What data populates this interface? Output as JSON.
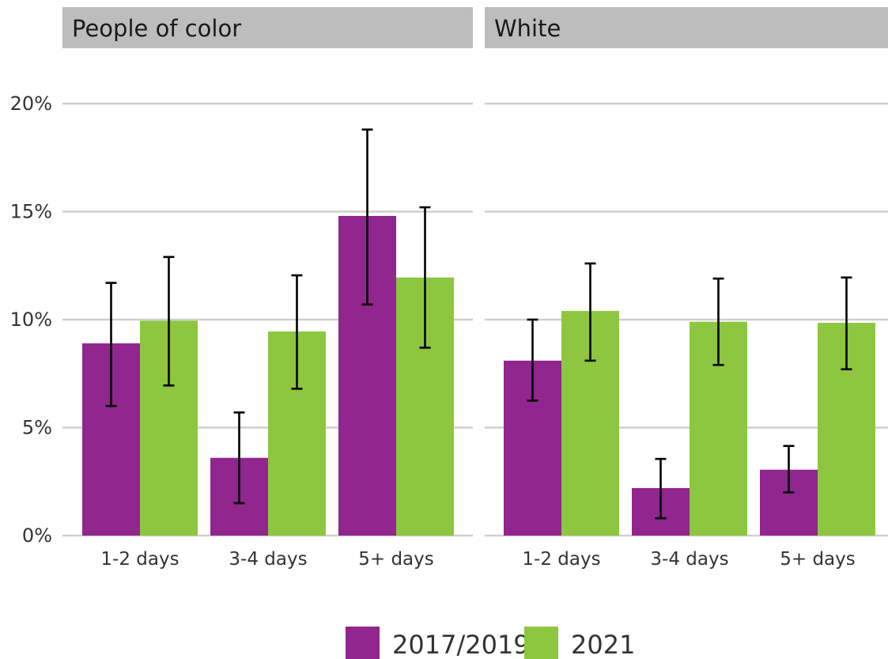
{
  "chart_data": {
    "type": "bar",
    "categories": [
      "1-2 days",
      "3-4 days",
      "5+ days"
    ],
    "y_ticks": [
      "0%",
      "5%",
      "10%",
      "15%",
      "20%"
    ],
    "ylim": [
      0,
      20
    ],
    "grid": true,
    "legend_placement": "bottom-center",
    "colors": {
      "2017/2019": "#90268e",
      "2021": "#8dc63f"
    },
    "panels": [
      {
        "title": "People of color",
        "series": [
          {
            "name": "2017/2019",
            "values": [
              8.9,
              3.6,
              14.8
            ],
            "err_low": [
              6.0,
              1.5,
              10.7
            ],
            "err_high": [
              11.7,
              5.7,
              18.8
            ]
          },
          {
            "name": "2021",
            "values": [
              9.95,
              9.45,
              11.95
            ],
            "err_low": [
              6.95,
              6.8,
              8.7
            ],
            "err_high": [
              12.9,
              12.05,
              15.2
            ]
          }
        ]
      },
      {
        "title": "White",
        "series": [
          {
            "name": "2017/2019",
            "values": [
              8.1,
              2.2,
              3.05
            ],
            "err_low": [
              6.25,
              0.8,
              2.0
            ],
            "err_high": [
              10.0,
              3.55,
              4.15
            ]
          },
          {
            "name": "2021",
            "values": [
              10.4,
              9.9,
              9.85
            ],
            "err_low": [
              8.1,
              7.9,
              7.7
            ],
            "err_high": [
              12.6,
              11.9,
              11.95
            ]
          }
        ]
      }
    ],
    "legend": [
      "2017/2019",
      "2021"
    ]
  }
}
